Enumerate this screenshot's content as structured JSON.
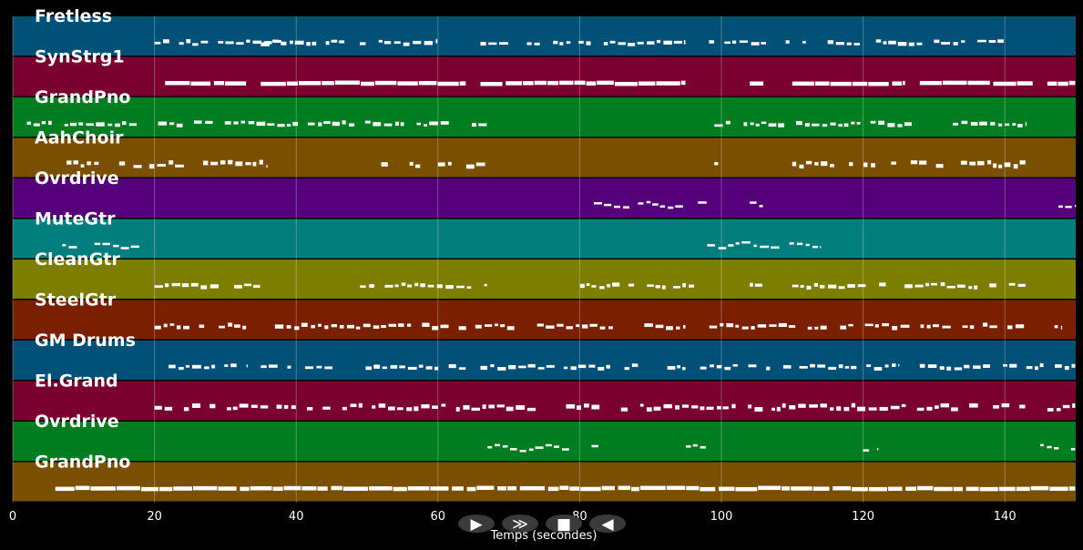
{
  "chart_data": {
    "type": "piano-roll",
    "xlabel": "Temps (secondes)",
    "xlim": [
      0,
      150
    ],
    "x_ticks": [
      0,
      20,
      40,
      60,
      80,
      100,
      120,
      140
    ],
    "grid": true,
    "tracks": [
      {
        "name": "Fretless",
        "color": "#005077",
        "segments": [
          [
            20,
            38
          ],
          [
            35,
            60
          ],
          [
            66,
            95
          ],
          [
            97,
            112
          ],
          [
            115,
            140
          ]
        ],
        "style": "dotted",
        "end_rise": true
      },
      {
        "name": "SynStrg1",
        "color": "#7a0030",
        "segments": [
          [
            21.5,
            33
          ],
          [
            35,
            64
          ],
          [
            66,
            95
          ],
          [
            104,
            106
          ],
          [
            110,
            126
          ],
          [
            128,
            144
          ],
          [
            146,
            150
          ]
        ],
        "style": "solid"
      },
      {
        "name": "GrandPno",
        "color": "#007d20",
        "segments": [
          [
            2,
            67
          ],
          [
            99,
            143
          ]
        ],
        "style": "dotted"
      },
      {
        "name": "AahChoir",
        "color": "#7a5000",
        "segments": [
          [
            6,
            36
          ],
          [
            52,
            53
          ],
          [
            56,
            58
          ],
          [
            60,
            62
          ],
          [
            64,
            67
          ],
          [
            99,
            100
          ],
          [
            110,
            116
          ],
          [
            118,
            143
          ]
        ],
        "style": "dashed"
      },
      {
        "name": "Ovrdrive",
        "color": "#55007a",
        "segments": [
          [
            82,
            98
          ],
          [
            104,
            106
          ],
          [
            145,
            150
          ]
        ],
        "style": "wavy"
      },
      {
        "name": "MuteGtr",
        "color": "#007d7d",
        "segments": [
          [
            6,
            18
          ],
          [
            98,
            114
          ]
        ],
        "style": "wavy"
      },
      {
        "name": "CleanGtr",
        "color": "#7d7d00",
        "segments": [
          [
            20,
            35
          ],
          [
            49,
            67
          ],
          [
            79,
            97
          ],
          [
            104,
            106
          ],
          [
            110,
            143
          ]
        ],
        "style": "dotted"
      },
      {
        "name": "SteelGtr",
        "color": "#7a2000",
        "segments": [
          [
            20,
            33
          ],
          [
            37,
            95
          ],
          [
            97,
            143
          ],
          [
            147,
            148
          ]
        ],
        "style": "dotted"
      },
      {
        "name": "GM Drums",
        "color": "#005077",
        "segments": [
          [
            22,
            33
          ],
          [
            35,
            64
          ],
          [
            66,
            95
          ],
          [
            97,
            125
          ],
          [
            128,
            150
          ]
        ],
        "style": "dotted"
      },
      {
        "name": "El.Grand",
        "color": "#7a0030",
        "segments": [
          [
            20,
            143
          ],
          [
            146,
            150
          ]
        ],
        "style": "dashed"
      },
      {
        "name": "Ovrdrive",
        "color": "#007d20",
        "segments": [
          [
            67,
            83
          ],
          [
            95,
            98
          ],
          [
            120,
            122
          ],
          [
            145,
            150
          ]
        ],
        "style": "wavy"
      },
      {
        "name": "GrandPno",
        "color": "#7a5000",
        "segments": [
          [
            6,
            150
          ]
        ],
        "style": "solid"
      }
    ]
  },
  "controls": [
    {
      "name": "play-button",
      "glyph": "▶"
    },
    {
      "name": "forward-button",
      "glyph": "≫"
    },
    {
      "name": "stop-button",
      "glyph": "■"
    },
    {
      "name": "rewind-button",
      "glyph": "◀"
    }
  ]
}
